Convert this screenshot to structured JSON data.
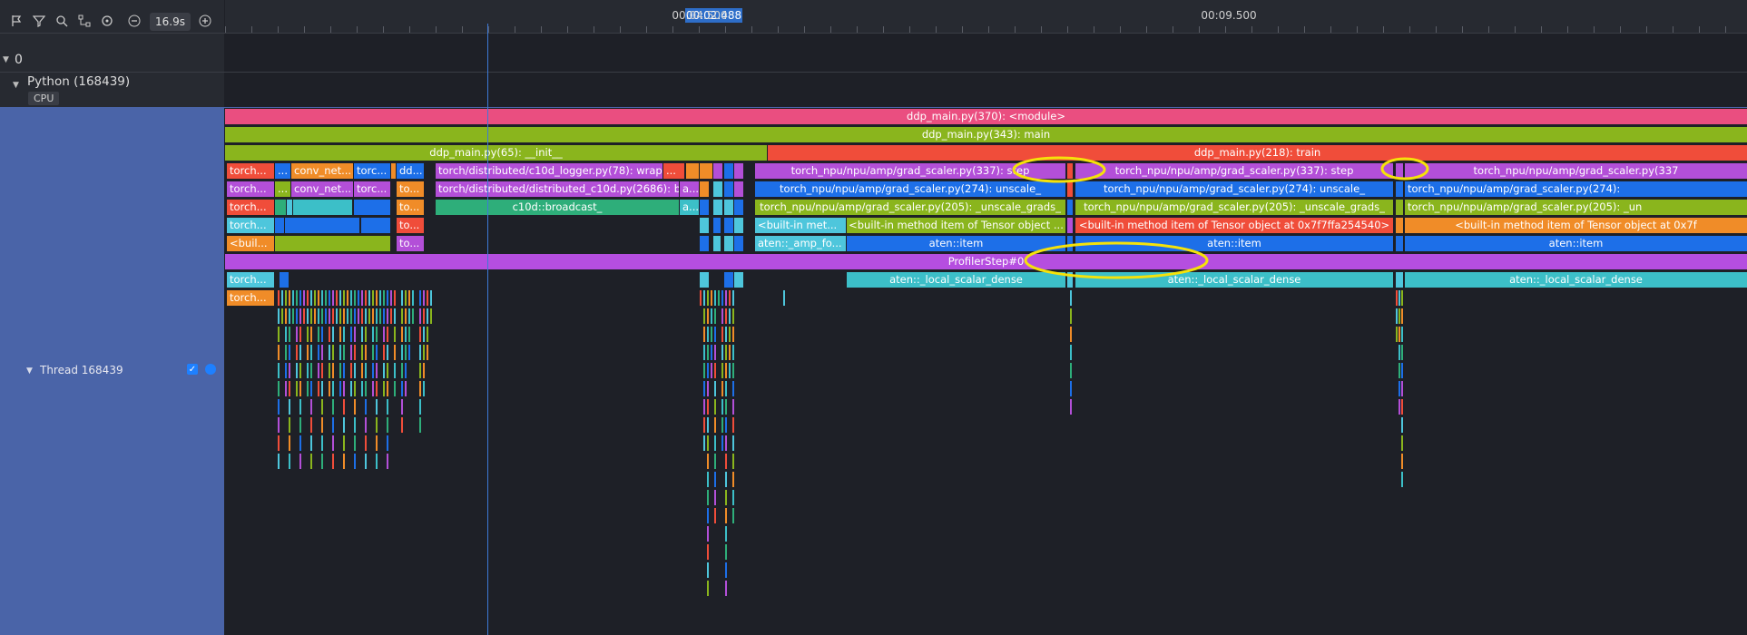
{
  "toolbar": {
    "icons": [
      "flag-icon",
      "filter-icon",
      "search-icon",
      "flow-icon",
      "reset-icon",
      "zoom-out-icon",
      "zoom-in-icon"
    ],
    "zoom_value": "16.9s"
  },
  "timeline": {
    "cursor": "00:02.488",
    "ticks": [
      "00:04.500",
      "00:09.500"
    ]
  },
  "tree": {
    "lane0": "0",
    "process": "Python (168439)",
    "cpu_badge": "CPU",
    "thread": "Thread 168439"
  },
  "colors": {
    "module": "#ea4e80",
    "main": "#8ab51d",
    "init": "#8ab51d",
    "train": "#f04d3a",
    "purple": "#b34fd8",
    "blue": "#1d6fe8",
    "green": "#2eae7a",
    "orange": "#f08c28",
    "cyan": "#4ec6dc",
    "teal": "#3cbfc8",
    "profiler": "#b54ee0",
    "highlight": "#f5e20a"
  },
  "flame": {
    "module": "ddp_main.py(370): <module>",
    "main": "ddp_main.py(343): main",
    "init": "ddp_main.py(65): __init__",
    "train": "ddp_main.py(218): train",
    "row4": [
      "torch...",
      "...",
      "conv_net...",
      "torc...",
      "dd...",
      "torch/distributed/c10d_logger.py(78): wrapper",
      "...",
      "torch_npu/npu/amp/grad_scaler.py(337): step",
      "torch_npu/npu/amp/grad_scaler.py(337): step",
      "torch_npu/npu/amp/grad_scaler.py(337"
    ],
    "row5": [
      "torch...",
      "...",
      "conv_net...",
      "torc...",
      "to...",
      "torch/distributed/distributed_c10d.py(2686): broadcast",
      "a...",
      "torch_npu/npu/amp/grad_scaler.py(274): unscale_",
      "torch_npu/npu/amp/grad_scaler.py(274): unscale_",
      "torch_npu/npu/amp/grad_scaler.py(274): "
    ],
    "row6": [
      "torch...",
      "to...",
      "c10d::broadcast_",
      "a...",
      "torch_npu/npu/amp/grad_scaler.py(205): _unscale_grads_",
      "torch_npu/npu/amp/grad_scaler.py(205): _unscale_grads_",
      "torch_npu/npu/amp/grad_scaler.py(205): _un"
    ],
    "row7": [
      "torch...",
      "to...",
      "<built-in met...",
      "<built-in method item of Tensor object ...",
      "<built-in method item of Tensor object at 0x7f7ffa254540>",
      "<built-in method item of Tensor object at 0x7f"
    ],
    "row8": [
      "<buil...",
      "to...",
      "aten::_amp_fo...",
      "aten::item",
      "aten::item",
      "aten::item"
    ],
    "profiler": "ProfilerStep#0",
    "row10": [
      "torch...",
      "aten::_local_scalar_dense",
      "aten::_local_scalar_dense",
      "aten::_local_scalar_dense"
    ],
    "row11": [
      "torch..."
    ]
  }
}
